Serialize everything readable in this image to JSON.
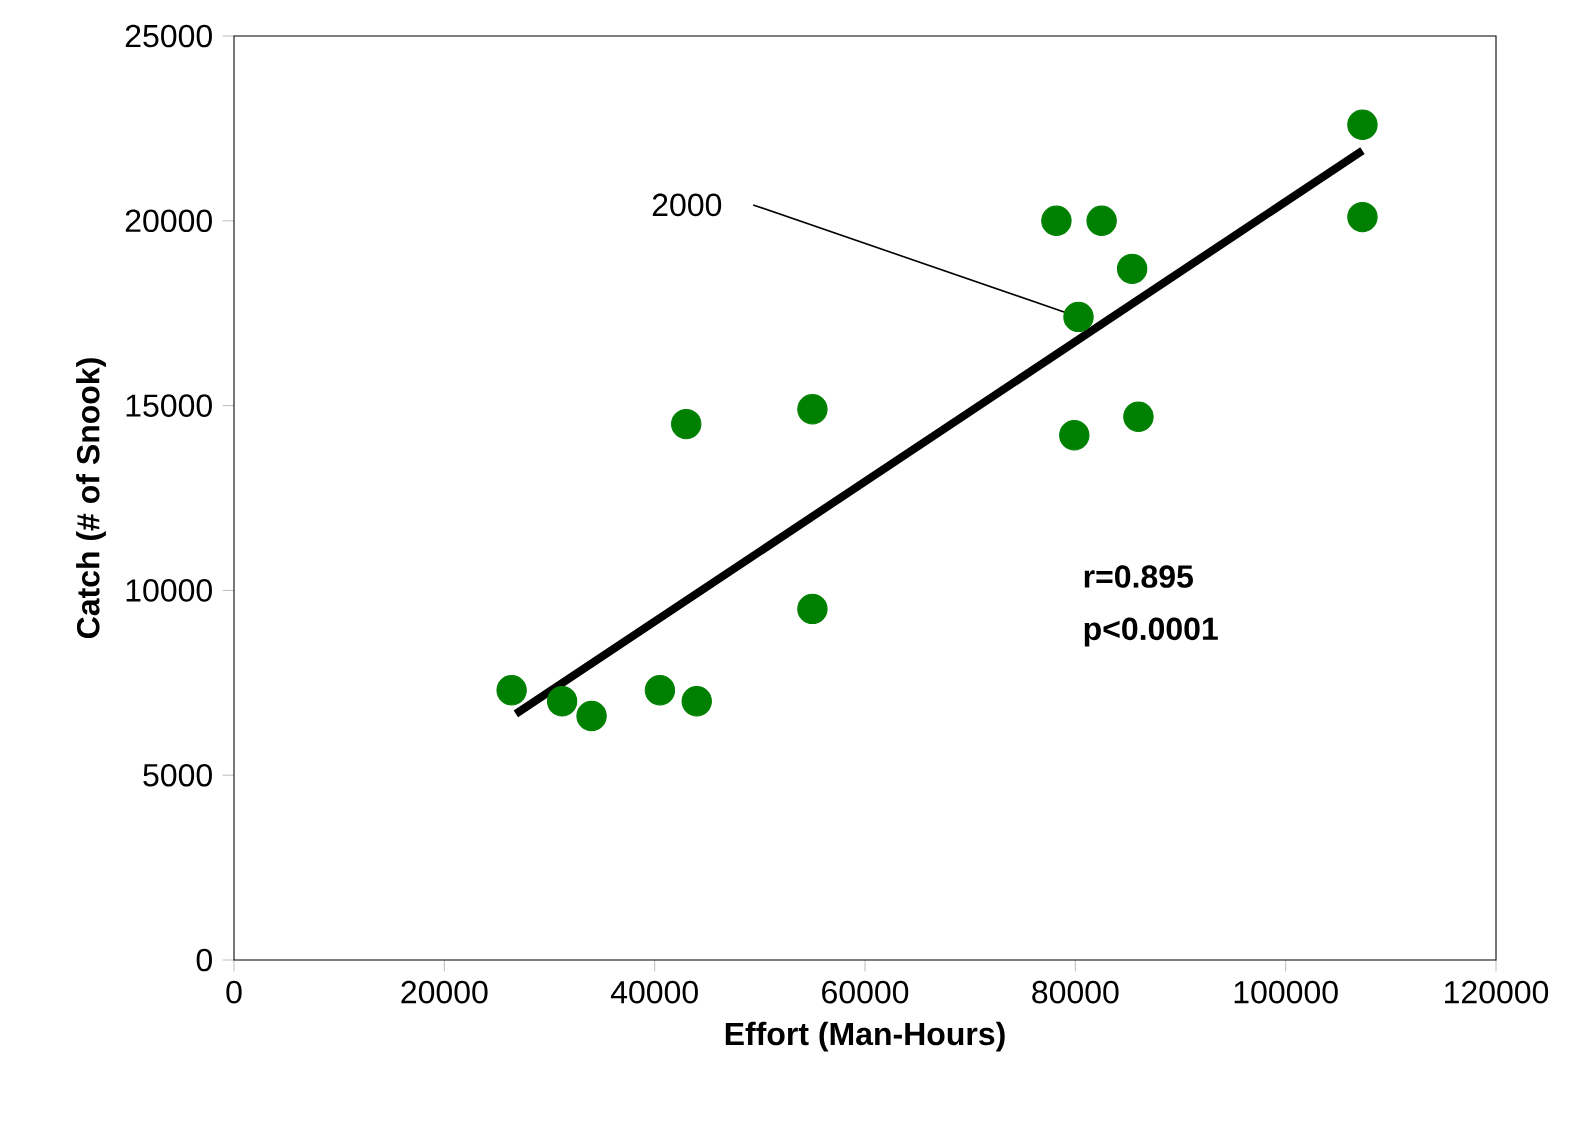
{
  "chart_data": {
    "type": "scatter",
    "xlabel": "Effort (Man-Hours)",
    "ylabel": "Catch (# of Snook)",
    "xlim": [
      0,
      120000
    ],
    "ylim": [
      0,
      25000
    ],
    "xticks": [
      0,
      20000,
      40000,
      60000,
      80000,
      100000,
      120000
    ],
    "yticks": [
      0,
      5000,
      10000,
      15000,
      20000,
      25000
    ],
    "grid": false,
    "annotations": [
      {
        "text": "2000",
        "x": 80300,
        "y": 17400
      },
      "r=0.895",
      "p<0.0001"
    ],
    "series": [
      {
        "marker": "circle",
        "color": "#008000",
        "x": [
          26400,
          31200,
          34000,
          40500,
          44000,
          43000,
          55000,
          55000,
          78200,
          82500,
          85400,
          80300,
          79900,
          86000,
          107300,
          107300
        ],
        "values": [
          7300,
          7000,
          6600,
          7300,
          7000,
          14500,
          14900,
          9500,
          20000,
          20000,
          18700,
          17400,
          14200,
          14700,
          22600,
          20100
        ]
      },
      {
        "type": "line",
        "marker": "none",
        "color": "#000000",
        "line_style": "solid",
        "x": [
          26800,
          107300
        ],
        "values": [
          6660,
          21900
        ]
      }
    ]
  }
}
